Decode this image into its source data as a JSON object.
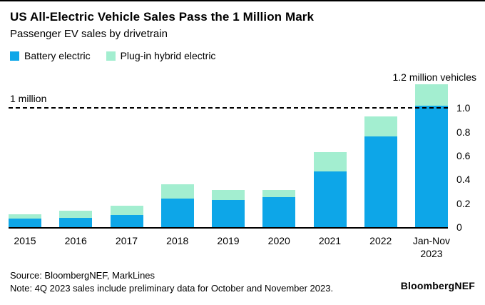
{
  "header": {
    "title": "US All-Electric Vehicle Sales Pass the 1 Million Mark",
    "subtitle": "Passenger EV sales by drivetrain"
  },
  "legend": [
    {
      "label": "Battery electric",
      "color": "#0da6e8"
    },
    {
      "label": "Plug-in hybrid electric",
      "color": "#a3eed0"
    }
  ],
  "chart_data": {
    "type": "bar",
    "stacked": true,
    "title": "US All-Electric Vehicle Sales Pass the 1 Million Mark",
    "subtitle": "Passenger EV sales by drivetrain",
    "unit": "million vehicles",
    "categories": [
      "2015",
      "2016",
      "2017",
      "2018",
      "2019",
      "2020",
      "2021",
      "2022",
      "Jan-Nov\n2023"
    ],
    "series": [
      {
        "name": "Battery electric",
        "color": "#0da6e8",
        "values": [
          0.07,
          0.08,
          0.1,
          0.24,
          0.23,
          0.25,
          0.47,
          0.76,
          1.02
        ]
      },
      {
        "name": "Plug-in hybrid electric",
        "color": "#a3eed0",
        "values": [
          0.04,
          0.06,
          0.08,
          0.12,
          0.08,
          0.06,
          0.16,
          0.17,
          0.18
        ]
      }
    ],
    "ylim": [
      0,
      1.2
    ],
    "yticks": [
      {
        "value": 1.0,
        "label": "1.0"
      },
      {
        "value": 0.8,
        "label": "0.8"
      },
      {
        "value": 0.6,
        "label": "0.6"
      },
      {
        "value": 0.4,
        "label": "0.4"
      },
      {
        "value": 0.2,
        "label": "0.2"
      },
      {
        "value": 0,
        "label": "0"
      }
    ],
    "y_axis_top_label": "1.2 million vehicles",
    "reference_line": {
      "value": 1.0,
      "label": "1 million",
      "style": "dashed"
    },
    "legend_position": "top-left",
    "grid": false
  },
  "footer": {
    "source": "Source: BloombergNEF, MarkLines",
    "note": "Note: 4Q 2023 sales include preliminary data for October and November 2023.",
    "logo": "BloombergNEF"
  }
}
